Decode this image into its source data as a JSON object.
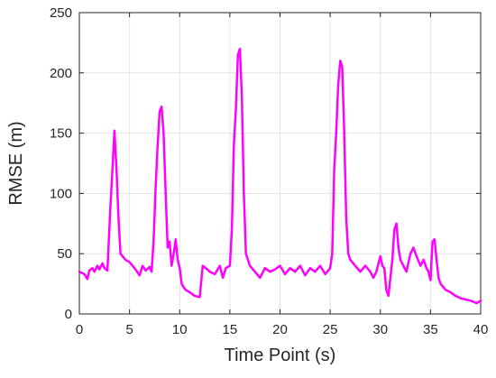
{
  "chart_data": {
    "type": "line",
    "title": "",
    "xlabel": "Time Point (s)",
    "ylabel": "RMSE (m)",
    "xlim": [
      0,
      40
    ],
    "ylim": [
      0,
      250
    ],
    "x_ticks": [
      0,
      5,
      10,
      15,
      20,
      25,
      30,
      35,
      40
    ],
    "y_ticks": [
      0,
      50,
      100,
      150,
      200,
      250
    ],
    "grid": true,
    "legend": "none",
    "series": [
      {
        "color": "#ff00ff",
        "x": [
          0,
          0.5,
          0.8,
          1.0,
          1.3,
          1.5,
          1.8,
          2.0,
          2.3,
          2.5,
          2.8,
          2.9,
          3.1,
          3.3,
          3.5,
          3.7,
          3.9,
          4.1,
          4.3,
          4.6,
          5.0,
          5.5,
          6.0,
          6.3,
          6.6,
          7.0,
          7.2,
          7.4,
          7.6,
          7.8,
          8.0,
          8.2,
          8.4,
          8.6,
          8.8,
          9.0,
          9.2,
          9.4,
          9.6,
          9.8,
          10.0,
          10.2,
          10.4,
          10.6,
          11.0,
          11.5,
          12.0,
          12.3,
          12.6,
          13.0,
          13.5,
          14.0,
          14.3,
          14.6,
          15.0,
          15.2,
          15.4,
          15.6,
          15.8,
          16.0,
          16.2,
          16.4,
          16.6,
          16.8,
          17.0,
          17.5,
          18.0,
          18.5,
          19.0,
          19.5,
          20.0,
          20.5,
          21.0,
          21.5,
          22.0,
          22.5,
          23.0,
          23.5,
          24.0,
          24.5,
          25.0,
          25.2,
          25.4,
          25.6,
          25.8,
          26.0,
          26.2,
          26.4,
          26.6,
          26.8,
          27.0,
          27.5,
          28.0,
          28.5,
          29.0,
          29.3,
          29.6,
          30.0,
          30.2,
          30.4,
          30.6,
          30.8,
          31.0,
          31.2,
          31.4,
          31.6,
          31.8,
          32.0,
          32.3,
          32.6,
          33.0,
          33.3,
          33.6,
          34.0,
          34.3,
          34.6,
          34.8,
          35.0,
          35.2,
          35.4,
          35.6,
          35.8,
          36.0,
          36.5,
          37.0,
          37.5,
          38.0,
          38.5,
          39.0,
          39.3,
          39.6,
          40.0
        ],
        "y": [
          35,
          33,
          29,
          36,
          38,
          35,
          40,
          37,
          42,
          38,
          36,
          55,
          90,
          120,
          152,
          120,
          80,
          50,
          48,
          45,
          43,
          38,
          32,
          40,
          36,
          39,
          35,
          60,
          105,
          140,
          168,
          172,
          150,
          100,
          55,
          60,
          40,
          50,
          62,
          45,
          38,
          25,
          22,
          20,
          18,
          15,
          14,
          40,
          38,
          35,
          33,
          40,
          30,
          38,
          40,
          70,
          140,
          170,
          215,
          220,
          180,
          100,
          50,
          45,
          40,
          35,
          30,
          38,
          35,
          37,
          40,
          33,
          38,
          35,
          40,
          32,
          38,
          35,
          40,
          33,
          38,
          50,
          120,
          150,
          190,
          210,
          205,
          150,
          80,
          50,
          45,
          40,
          35,
          40,
          35,
          30,
          35,
          48,
          40,
          38,
          20,
          15,
          30,
          45,
          70,
          75,
          55,
          45,
          40,
          35,
          50,
          55,
          48,
          40,
          45,
          38,
          35,
          28,
          60,
          62,
          45,
          30,
          25,
          20,
          18,
          15,
          13,
          12,
          11,
          10,
          9,
          11
        ]
      }
    ]
  }
}
